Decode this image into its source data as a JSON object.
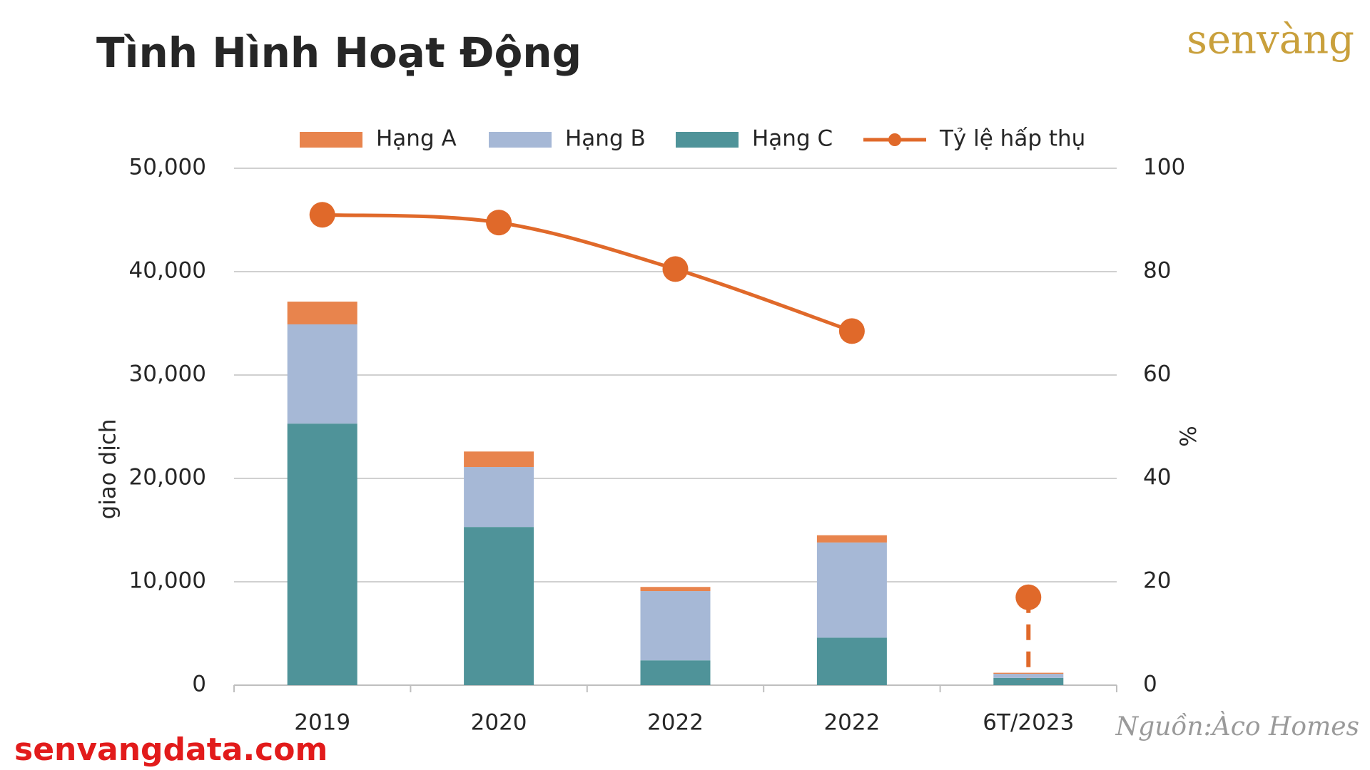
{
  "brand": "senvàng",
  "website": "senvangdata.com",
  "source": "Nguồn:Àco Homes",
  "chart_data": {
    "type": "bar",
    "title": "Tình Hình Hoạt Động",
    "y_label": "giao dịch",
    "y2_label": "%",
    "categories": [
      "2019",
      "2020",
      "2022",
      "2022",
      "6T/2023"
    ],
    "stacked": true,
    "series": [
      {
        "name": "Hạng A",
        "color": "#e8844d",
        "values": [
          2200,
          1500,
          400,
          700,
          100
        ]
      },
      {
        "name": "Hạng B",
        "color": "#a6b8d6",
        "values": [
          9600,
          5800,
          6700,
          9200,
          400
        ]
      },
      {
        "name": "Hạng C",
        "color": "#4f9399",
        "values": [
          25300,
          15300,
          2400,
          4600,
          700
        ]
      },
      {
        "name": "Tỷ lệ hấp thụ",
        "color": "#e0692a",
        "type": "line",
        "axis": "y2",
        "dashed_last": true,
        "values": [
          91,
          89.5,
          80.5,
          68.5,
          17
        ]
      }
    ],
    "ylim": [
      0,
      50000
    ],
    "yticks": [
      0,
      {
        "value": 10000,
        "label": "10,000"
      },
      {
        "value": 20000,
        "label": "20,000"
      },
      {
        "value": 30000,
        "label": "30,000"
      },
      {
        "value": 40000,
        "label": "40,000"
      },
      {
        "value": 50000,
        "label": "50,000"
      }
    ],
    "y2lim": [
      0,
      100
    ],
    "y2ticks": [
      0,
      20,
      40,
      60,
      80,
      100
    ],
    "grid": true
  }
}
